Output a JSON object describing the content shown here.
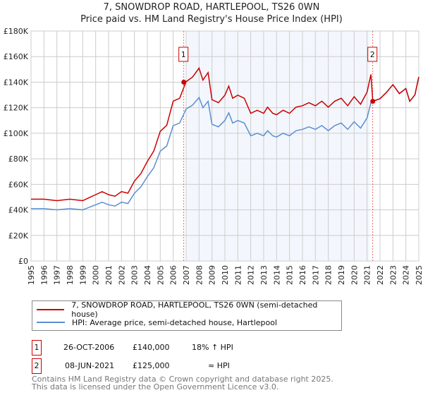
{
  "chart_data": {
    "type": "line",
    "title": "7, SNOWDROP ROAD, HARTLEPOOL, TS26 0WN",
    "subtitle": "Price paid vs. HM Land Registry's House Price Index (HPI)",
    "xlim": [
      1995,
      2025
    ],
    "ylim": [
      0,
      180000
    ],
    "yticks": [
      {
        "v": 0,
        "l": "£0"
      },
      {
        "v": 20000,
        "l": "£20K"
      },
      {
        "v": 40000,
        "l": "£40K"
      },
      {
        "v": 60000,
        "l": "£60K"
      },
      {
        "v": 80000,
        "l": "£80K"
      },
      {
        "v": 100000,
        "l": "£100K"
      },
      {
        "v": 120000,
        "l": "£120K"
      },
      {
        "v": 140000,
        "l": "£140K"
      },
      {
        "v": 160000,
        "l": "£160K"
      },
      {
        "v": 180000,
        "l": "£180K"
      }
    ],
    "xticks": [
      "1995",
      "1996",
      "1997",
      "1998",
      "1999",
      "2000",
      "2001",
      "2002",
      "2003",
      "2004",
      "2005",
      "2006",
      "2007",
      "2008",
      "2009",
      "2010",
      "2011",
      "2012",
      "2013",
      "2014",
      "2015",
      "2016",
      "2017",
      "2018",
      "2019",
      "2020",
      "2021",
      "2022",
      "2023",
      "2024",
      "2025"
    ],
    "grid": true,
    "shaded_range": [
      2007,
      2021.2
    ],
    "x": [
      1995,
      1996,
      1997,
      1998,
      1999,
      1999.5,
      2000,
      2000.5,
      2001,
      2001.5,
      2002,
      2002.5,
      2003,
      2003.5,
      2004,
      2004.5,
      2005,
      2005.5,
      2006,
      2006.5,
      2007,
      2007.5,
      2008,
      2008.3,
      2008.7,
      2009,
      2009.5,
      2010,
      2010.3,
      2010.6,
      2011,
      2011.5,
      2012,
      2012.5,
      2013,
      2013.3,
      2013.7,
      2014,
      2014.5,
      2015,
      2015.5,
      2016,
      2016.5,
      2017,
      2017.5,
      2018,
      2018.5,
      2019,
      2019.5,
      2020,
      2020.5,
      2021,
      2021.3,
      2021.44,
      2022,
      2022.5,
      2023,
      2023.5,
      2024,
      2024.3,
      2024.7,
      2025
    ],
    "series": [
      {
        "name": "7, SNOWDROP ROAD, HARTLEPOOL, TS26 0WN (semi-detached house)",
        "color": "#cc0000",
        "values_k": [
          48.4,
          48.4,
          47.2,
          48.4,
          47.2,
          49.6,
          51.9,
          54.3,
          51.9,
          50.7,
          54.3,
          53.1,
          62.5,
          68.4,
          77.9,
          86.1,
          101.5,
          106.2,
          125.1,
          127.4,
          140.4,
          144,
          151,
          141.6,
          147.5,
          126.3,
          123.9,
          129.8,
          136.9,
          127.4,
          129.8,
          127.4,
          115.6,
          118,
          115.6,
          120.4,
          115.6,
          114.5,
          118,
          115.6,
          120.4,
          121.5,
          123.9,
          121.5,
          125.1,
          120.4,
          125.1,
          127.4,
          121.5,
          128.6,
          122.7,
          132.2,
          146,
          125,
          127,
          132,
          138,
          131,
          135,
          125,
          130,
          144
        ]
      },
      {
        "name": "HPI: Average price, semi-detached house, Hartlepool",
        "color": "#5b8fd0",
        "values_k": [
          41,
          41,
          40,
          41,
          40,
          42,
          44,
          46,
          44,
          43,
          46,
          45,
          53,
          58,
          66,
          73,
          86,
          90,
          106,
          108,
          119,
          122,
          128,
          120,
          125,
          107,
          105,
          110,
          116,
          108,
          110,
          108,
          98,
          100,
          98,
          102,
          98,
          97,
          100,
          98,
          102,
          103,
          105,
          103,
          106,
          102,
          106,
          108,
          103,
          109,
          104,
          112,
          124,
          125,
          127,
          132,
          138,
          131,
          135,
          125,
          130,
          144
        ]
      }
    ],
    "sales": [
      {
        "label": "1",
        "year": 2006.82,
        "price": 140000,
        "date": "26-OCT-2006",
        "price_text": "£140,000",
        "hpi_text": "18% ↑ HPI"
      },
      {
        "label": "2",
        "year": 2021.44,
        "price": 125000,
        "date": "08-JUN-2021",
        "price_text": "£125,000",
        "hpi_text": "≈ HPI"
      }
    ]
  },
  "footer": {
    "line1": "Contains HM Land Registry data © Crown copyright and database right 2025.",
    "line2": "This data is licensed under the Open Government Licence v3.0."
  }
}
